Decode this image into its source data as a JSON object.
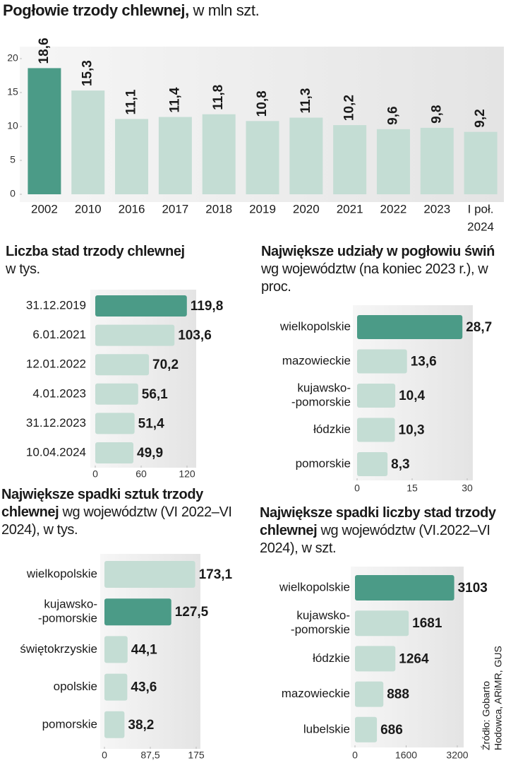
{
  "chart_data": [
    {
      "type": "bar",
      "orientation": "vertical",
      "title": "Pogłowie trzody chlewnej,",
      "subtitle": "w mln szt.",
      "categories": [
        "2002",
        "2010",
        "2016",
        "2017",
        "2018",
        "2019",
        "2020",
        "2021",
        "2022",
        "2023",
        [
          "I poł.",
          "2024"
        ]
      ],
      "values": [
        18.6,
        15.3,
        11.1,
        11.4,
        11.8,
        10.8,
        11.3,
        10.2,
        9.6,
        9.8,
        9.2
      ],
      "value_labels": [
        "18,6",
        "15,3",
        "11,1",
        "11,4",
        "11,8",
        "10,8",
        "11,3",
        "10,2",
        "9,6",
        "9,8",
        "9,2"
      ],
      "colors": [
        "#4b9b87",
        "#c4ddd4",
        "#c4ddd4",
        "#c4ddd4",
        "#c4ddd4",
        "#c4ddd4",
        "#c4ddd4",
        "#c4ddd4",
        "#c4ddd4",
        "#c4ddd4",
        "#c4ddd4"
      ],
      "ylim": [
        0,
        20
      ],
      "yticks": [
        0,
        5,
        10,
        15,
        20
      ]
    },
    {
      "type": "bar",
      "orientation": "horizontal",
      "title": "Liczba stad trzody chlewnej",
      "subtitle": "w tys.",
      "categories": [
        "31.12.2019",
        "6.01.2021",
        "12.01.2022",
        "4.01.2023",
        "31.12.2023",
        "10.04.2024"
      ],
      "values": [
        119.8,
        103.6,
        70.2,
        56.1,
        51.4,
        49.9
      ],
      "value_labels": [
        "119,8",
        "103,6",
        "70,2",
        "56,1",
        "51,4",
        "49,9"
      ],
      "colors": [
        "#4b9b87",
        "#c4ddd4",
        "#c4ddd4",
        "#c4ddd4",
        "#c4ddd4",
        "#c4ddd4"
      ],
      "xlim": [
        0,
        120
      ],
      "xticks": [
        0,
        60,
        120
      ]
    },
    {
      "type": "bar",
      "orientation": "horizontal",
      "title": "Największe udziały w pogłowiu świń",
      "subtitle": "wg województw (na koniec 2023 r.), w proc.",
      "categories": [
        "wielkopolskie",
        "mazowieckie",
        [
          "kujawsko-",
          "-pomorskie"
        ],
        "łódzkie",
        "pomorskie"
      ],
      "values": [
        28.7,
        13.6,
        10.4,
        10.3,
        8.3
      ],
      "value_labels": [
        "28,7",
        "13,6",
        "10,4",
        "10,3",
        "8,3"
      ],
      "colors": [
        "#4b9b87",
        "#c4ddd4",
        "#c4ddd4",
        "#c4ddd4",
        "#c4ddd4"
      ],
      "xlim": [
        0,
        30
      ],
      "xticks": [
        0,
        15,
        30
      ]
    },
    {
      "type": "bar",
      "orientation": "horizontal",
      "title": "Największe spadki sztuk trzody chlewnej",
      "subtitle": "wg województw (VI 2022–VI 2024), w tys.",
      "categories": [
        "wielkopolskie",
        [
          "kujawsko-",
          "-pomorskie"
        ],
        "świętokrzyskie",
        "opolskie",
        "pomorskie"
      ],
      "values": [
        173.1,
        127.5,
        44.1,
        43.6,
        38.2
      ],
      "value_labels": [
        "173,1",
        "127,5",
        "44,1",
        "43,6",
        "38,2"
      ],
      "colors": [
        "#c4ddd4",
        "#4b9b87",
        "#c4ddd4",
        "#c4ddd4",
        "#c4ddd4"
      ],
      "xlim": [
        0,
        175
      ],
      "xticks": [
        0,
        {
          "value": 87.5,
          "label": "87,5"
        },
        175
      ]
    },
    {
      "type": "bar",
      "orientation": "horizontal",
      "title": "Największe spadki liczby stad trzody chlewnej",
      "subtitle": "wg województw (VI.2022–VI 2024), w szt.",
      "categories": [
        "wielkopolskie",
        [
          "kujawsko-",
          "-pomorskie"
        ],
        "łódzkie",
        "mazowieckie",
        "lubelskie"
      ],
      "values": [
        3103,
        1681,
        1264,
        888,
        686
      ],
      "colors": [
        "#4b9b87",
        "#c4ddd4",
        "#c4ddd4",
        "#c4ddd4",
        "#c4ddd4"
      ],
      "xlim": [
        0,
        3200
      ],
      "xticks": [
        0,
        1600,
        3200
      ]
    }
  ],
  "source": [
    "Źródło: Gobarto",
    "Hodowca, ARiMR, GUS"
  ]
}
